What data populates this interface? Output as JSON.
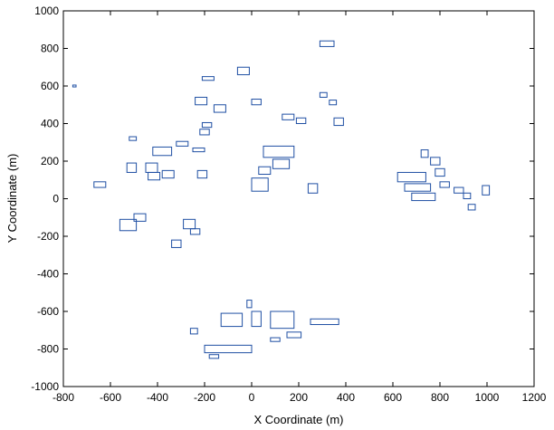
{
  "chart_data": {
    "type": "scatter",
    "title": "",
    "xlabel": "X Coordinate (m)",
    "ylabel": "Y Coordinate (m)",
    "xlim": [
      -800,
      1200
    ],
    "ylim": [
      -1000,
      1000
    ],
    "xticks": [
      "-800",
      "-600",
      "-400",
      "-200",
      "0",
      "200",
      "400",
      "600",
      "800",
      "1000",
      "1200"
    ],
    "yticks": [
      "-1000",
      "-800",
      "-600",
      "-400",
      "-200",
      "0",
      "200",
      "400",
      "600",
      "800",
      "1000"
    ],
    "grid": false,
    "legend": "none",
    "series_color": "#1f4fa3",
    "outlines": [
      {
        "type": "rect",
        "x": -760,
        "y": 595,
        "w": 14,
        "h": 10
      },
      {
        "type": "rect",
        "x": 290,
        "y": 810,
        "w": 60,
        "h": 30
      },
      {
        "type": "rect",
        "x": -60,
        "y": 660,
        "w": 50,
        "h": 40
      },
      {
        "type": "rect",
        "x": -210,
        "y": 630,
        "w": 50,
        "h": 20
      },
      {
        "type": "rect",
        "x": -240,
        "y": 500,
        "w": 50,
        "h": 40
      },
      {
        "type": "rect",
        "x": -160,
        "y": 460,
        "w": 50,
        "h": 40
      },
      {
        "type": "rect",
        "x": 0,
        "y": 500,
        "w": 40,
        "h": 30
      },
      {
        "type": "rect",
        "x": 290,
        "y": 540,
        "w": 30,
        "h": 25
      },
      {
        "type": "rect",
        "x": 330,
        "y": 500,
        "w": 30,
        "h": 25
      },
      {
        "type": "rect",
        "x": 130,
        "y": 420,
        "w": 50,
        "h": 30
      },
      {
        "type": "rect",
        "x": 190,
        "y": 400,
        "w": 40,
        "h": 30
      },
      {
        "type": "rect",
        "x": 350,
        "y": 390,
        "w": 40,
        "h": 40
      },
      {
        "type": "rect",
        "x": -210,
        "y": 380,
        "w": 40,
        "h": 25
      },
      {
        "type": "rect",
        "x": -220,
        "y": 340,
        "w": 40,
        "h": 30
      },
      {
        "type": "rect",
        "x": -520,
        "y": 310,
        "w": 30,
        "h": 20
      },
      {
        "type": "rect",
        "x": -420,
        "y": 230,
        "w": 80,
        "h": 45
      },
      {
        "type": "rect",
        "x": -320,
        "y": 280,
        "w": 50,
        "h": 25
      },
      {
        "type": "rect",
        "x": -250,
        "y": 250,
        "w": 50,
        "h": 20
      },
      {
        "type": "rect",
        "x": 50,
        "y": 220,
        "w": 130,
        "h": 60
      },
      {
        "type": "rect",
        "x": 90,
        "y": 160,
        "w": 70,
        "h": 50
      },
      {
        "type": "rect",
        "x": -530,
        "y": 140,
        "w": 40,
        "h": 50
      },
      {
        "type": "rect",
        "x": -450,
        "y": 140,
        "w": 50,
        "h": 50
      },
      {
        "type": "rect",
        "x": -440,
        "y": 100,
        "w": 50,
        "h": 40
      },
      {
        "type": "rect",
        "x": -380,
        "y": 110,
        "w": 50,
        "h": 40
      },
      {
        "type": "rect",
        "x": -230,
        "y": 110,
        "w": 40,
        "h": 40
      },
      {
        "type": "rect",
        "x": -670,
        "y": 60,
        "w": 50,
        "h": 30
      },
      {
        "type": "rect",
        "x": 0,
        "y": 40,
        "w": 70,
        "h": 70
      },
      {
        "type": "rect",
        "x": 30,
        "y": 130,
        "w": 50,
        "h": 40
      },
      {
        "type": "rect",
        "x": 240,
        "y": 30,
        "w": 40,
        "h": 50
      },
      {
        "type": "rect",
        "x": -560,
        "y": -170,
        "w": 70,
        "h": 60
      },
      {
        "type": "rect",
        "x": -500,
        "y": -120,
        "w": 50,
        "h": 40
      },
      {
        "type": "rect",
        "x": -290,
        "y": -160,
        "w": 50,
        "h": 50
      },
      {
        "type": "rect",
        "x": -260,
        "y": -190,
        "w": 40,
        "h": 30
      },
      {
        "type": "rect",
        "x": -340,
        "y": -260,
        "w": 40,
        "h": 40
      },
      {
        "type": "rect",
        "x": 620,
        "y": 90,
        "w": 120,
        "h": 50
      },
      {
        "type": "rect",
        "x": 650,
        "y": 40,
        "w": 110,
        "h": 40
      },
      {
        "type": "rect",
        "x": 680,
        "y": -10,
        "w": 100,
        "h": 40
      },
      {
        "type": "rect",
        "x": 720,
        "y": 220,
        "w": 30,
        "h": 40
      },
      {
        "type": "rect",
        "x": 760,
        "y": 180,
        "w": 40,
        "h": 40
      },
      {
        "type": "rect",
        "x": 780,
        "y": 120,
        "w": 40,
        "h": 40
      },
      {
        "type": "rect",
        "x": 800,
        "y": 60,
        "w": 40,
        "h": 30
      },
      {
        "type": "rect",
        "x": 860,
        "y": 30,
        "w": 40,
        "h": 30
      },
      {
        "type": "rect",
        "x": 900,
        "y": 0,
        "w": 30,
        "h": 30
      },
      {
        "type": "rect",
        "x": 920,
        "y": -60,
        "w": 30,
        "h": 30
      },
      {
        "type": "rect",
        "x": 980,
        "y": 20,
        "w": 30,
        "h": 50
      },
      {
        "type": "rect",
        "x": -260,
        "y": -720,
        "w": 30,
        "h": 30
      },
      {
        "type": "rect",
        "x": -130,
        "y": -680,
        "w": 90,
        "h": 70
      },
      {
        "type": "rect",
        "x": -20,
        "y": -580,
        "w": 20,
        "h": 40
      },
      {
        "type": "rect",
        "x": 0,
        "y": -680,
        "w": 40,
        "h": 80
      },
      {
        "type": "rect",
        "x": 80,
        "y": -690,
        "w": 100,
        "h": 90
      },
      {
        "type": "rect",
        "x": 250,
        "y": -670,
        "w": 120,
        "h": 30
      },
      {
        "type": "rect",
        "x": 150,
        "y": -740,
        "w": 60,
        "h": 30
      },
      {
        "type": "rect",
        "x": 80,
        "y": -760,
        "w": 40,
        "h": 20
      },
      {
        "type": "rect",
        "x": -200,
        "y": -820,
        "w": 200,
        "h": 40
      },
      {
        "type": "rect",
        "x": -180,
        "y": -850,
        "w": 40,
        "h": 20
      }
    ]
  }
}
